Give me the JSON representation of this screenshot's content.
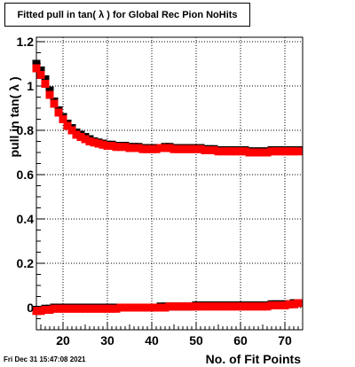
{
  "title": "Fitted pull in tan( λ ) for Global Rec Pion NoHits",
  "timestamp": "Fri Dec 31 15:47:08 2021",
  "colors": {
    "series_black": "#000000",
    "series_red": "#ff0000",
    "grid": "#000000",
    "frame": "#000000"
  },
  "chart_data": {
    "type": "scatter",
    "title": "Fitted pull in tan( λ ) for Global Rec Pion NoHits",
    "xlabel": "No. of Fit Points",
    "ylabel": "pull in tan( λ )",
    "xlim": [
      14,
      74
    ],
    "ylim": [
      -0.1,
      1.22
    ],
    "grid": true,
    "marker": "square",
    "x_ticks": [
      20,
      30,
      40,
      50,
      60,
      70
    ],
    "x_tick_labels": [
      "20",
      "30",
      "40",
      "50",
      "60",
      "70"
    ],
    "y_ticks": [
      0,
      0.2,
      0.4,
      0.6,
      0.8,
      1,
      1.2
    ],
    "y_tick_labels": [
      "0",
      "0.2",
      "0.4",
      "0.6",
      "0.8",
      "1",
      "1.2"
    ],
    "x": [
      14,
      15,
      16,
      17,
      18,
      19,
      20,
      21,
      22,
      23,
      24,
      25,
      26,
      27,
      28,
      29,
      30,
      31,
      32,
      33,
      34,
      35,
      36,
      37,
      38,
      39,
      40,
      41,
      42,
      43,
      44,
      45,
      46,
      47,
      48,
      49,
      50,
      51,
      52,
      53,
      54,
      55,
      56,
      57,
      58,
      59,
      60,
      61,
      62,
      63,
      64,
      65,
      66,
      67,
      68,
      69,
      70,
      71,
      72,
      73
    ],
    "series": [
      {
        "values_upper": [
          1.1,
          1.07,
          1.03,
          0.98,
          0.93,
          0.89,
          0.86,
          0.83,
          0.81,
          0.79,
          0.78,
          0.77,
          0.76,
          0.75,
          0.745,
          0.74,
          0.735,
          0.735,
          0.73,
          0.73,
          0.73,
          0.725,
          0.725,
          0.725,
          0.72,
          0.72,
          0.72,
          0.72,
          0.72,
          0.725,
          0.725,
          0.72,
          0.72,
          0.72,
          0.72,
          0.72,
          0.72,
          0.72,
          0.715,
          0.715,
          0.715,
          0.71,
          0.71,
          0.71,
          0.71,
          0.71,
          0.71,
          0.71,
          0.705,
          0.705,
          0.705,
          0.705,
          0.705,
          0.71,
          0.71,
          0.71,
          0.71,
          0.71,
          0.71,
          0.71
        ],
        "values_lower": [
          -0.01,
          -0.01,
          -0.005,
          -0.005,
          0,
          0,
          0,
          0,
          0,
          0,
          0,
          0,
          0,
          0,
          0,
          0,
          0,
          0,
          0,
          0,
          0,
          0,
          0,
          0,
          0,
          0,
          0,
          0,
          0.005,
          0.005,
          0.005,
          0.005,
          0.005,
          0.005,
          0.005,
          0.005,
          0.01,
          0.01,
          0.01,
          0.01,
          0.01,
          0.01,
          0.01,
          0.01,
          0.01,
          0.01,
          0.01,
          0.01,
          0.01,
          0.01,
          0.01,
          0.01,
          0.01,
          0.015,
          0.015,
          0.015,
          0.015,
          0.015,
          0.02,
          0.02
        ]
      },
      {
        "values_upper": [
          1.08,
          1.05,
          1.01,
          0.96,
          0.92,
          0.88,
          0.85,
          0.82,
          0.8,
          0.78,
          0.77,
          0.76,
          0.75,
          0.745,
          0.74,
          0.735,
          0.73,
          0.73,
          0.725,
          0.725,
          0.725,
          0.72,
          0.72,
          0.72,
          0.715,
          0.715,
          0.715,
          0.715,
          0.72,
          0.72,
          0.72,
          0.715,
          0.715,
          0.715,
          0.715,
          0.715,
          0.715,
          0.715,
          0.71,
          0.71,
          0.71,
          0.705,
          0.705,
          0.705,
          0.705,
          0.705,
          0.705,
          0.705,
          0.7,
          0.7,
          0.7,
          0.7,
          0.7,
          0.705,
          0.705,
          0.705,
          0.705,
          0.705,
          0.705,
          0.705
        ],
        "values_lower": [
          -0.015,
          -0.015,
          -0.01,
          -0.01,
          -0.005,
          -0.005,
          -0.005,
          -0.005,
          -0.005,
          -0.005,
          -0.005,
          -0.005,
          -0.005,
          -0.005,
          -0.005,
          -0.005,
          -0.005,
          -0.005,
          -0.005,
          0,
          0,
          0,
          0,
          0,
          0,
          0,
          0,
          0,
          0,
          0,
          0.005,
          0.005,
          0.005,
          0.005,
          0.005,
          0.005,
          0.005,
          0.005,
          0.005,
          0.005,
          0.005,
          0.005,
          0.005,
          0.005,
          0.005,
          0.005,
          0.005,
          0.005,
          0.005,
          0.005,
          0.005,
          0.005,
          0.005,
          0.01,
          0.01,
          0.01,
          0.01,
          0.015,
          0.015,
          0.02
        ]
      }
    ]
  }
}
